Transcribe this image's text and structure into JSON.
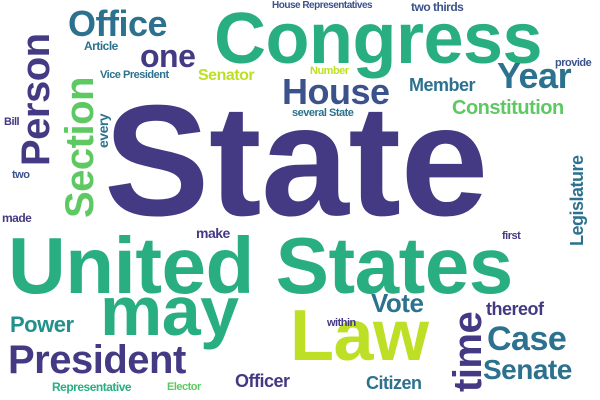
{
  "palette": {
    "purple": "#433a83",
    "indigo": "#3b528b",
    "blue": "#2c728e",
    "teal": "#21918c",
    "green": "#28ae80",
    "lightgreen": "#5ec962",
    "lime": "#addc30",
    "yellow": "#bddf26"
  },
  "words": {
    "state": "State",
    "united_states_1": "United States",
    "congress": "Congress",
    "law": "Law",
    "may": "may",
    "president": "President",
    "person": "Person",
    "section": "Section",
    "office": "Office",
    "one": "one",
    "house": "House",
    "year": "Year",
    "senator": "Senator",
    "member": "Member",
    "constitution": "Constitution",
    "legislature": "Legislature",
    "every": "every",
    "time": "time",
    "case": "Case",
    "senate": "Senate",
    "vote": "Vote",
    "power": "Power",
    "officer": "Officer",
    "citizen": "Citizen",
    "thereof": "thereof",
    "make": "make",
    "made": "made",
    "two_thirds": "two thirds",
    "house_representatives": "House Representatives",
    "article": "Article",
    "vice_president": "Vice President",
    "number": "Number",
    "several_state": "several State",
    "provide": "provide",
    "bill": "Bill",
    "two": "two",
    "first": "first",
    "within": "within",
    "representative": "Representative",
    "elector": "Elector"
  }
}
